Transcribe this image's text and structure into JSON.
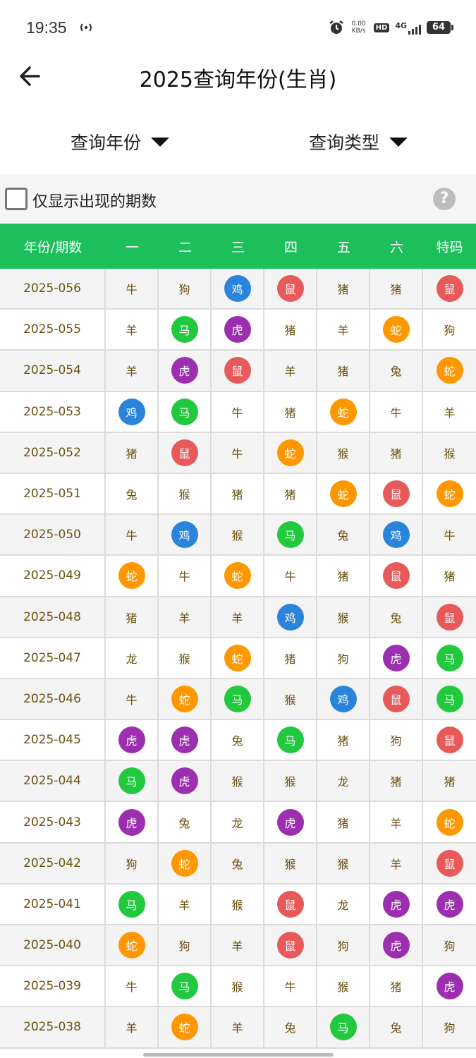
{
  "status_bar": {
    "time": "19:35",
    "net_speed": "0.00",
    "net_speed_unit": "KB/s",
    "hd_label": "HD",
    "network": "4G",
    "battery": "64"
  },
  "header": {
    "title": "2025查询年份(生肖)"
  },
  "filters": {
    "year_label": "查询年份",
    "type_label": "查询类型"
  },
  "options": {
    "show_only_label": "仅显示出现的期数",
    "help_glyph": "?"
  },
  "colors": {
    "header_bg": "#1dbf5c",
    "red": "#e85a5a",
    "blue": "#2b84dc",
    "green": "#22c93e",
    "purple": "#9c2fb0",
    "orange": "#ff9800"
  },
  "table": {
    "columns": [
      "年份/期数",
      "一",
      "二",
      "三",
      "四",
      "五",
      "六",
      "特码"
    ],
    "rows": [
      {
        "period": "2025-056",
        "cells": [
          {
            "t": "牛",
            "c": ""
          },
          {
            "t": "狗",
            "c": ""
          },
          {
            "t": "鸡",
            "c": "blue"
          },
          {
            "t": "鼠",
            "c": "red"
          },
          {
            "t": "猪",
            "c": ""
          },
          {
            "t": "猪",
            "c": ""
          },
          {
            "t": "鼠",
            "c": "red"
          }
        ]
      },
      {
        "period": "2025-055",
        "cells": [
          {
            "t": "羊",
            "c": ""
          },
          {
            "t": "马",
            "c": "green"
          },
          {
            "t": "虎",
            "c": "purple"
          },
          {
            "t": "猪",
            "c": ""
          },
          {
            "t": "羊",
            "c": ""
          },
          {
            "t": "蛇",
            "c": "orange"
          },
          {
            "t": "狗",
            "c": ""
          }
        ]
      },
      {
        "period": "2025-054",
        "cells": [
          {
            "t": "羊",
            "c": ""
          },
          {
            "t": "虎",
            "c": "purple"
          },
          {
            "t": "鼠",
            "c": "red"
          },
          {
            "t": "羊",
            "c": ""
          },
          {
            "t": "猪",
            "c": ""
          },
          {
            "t": "兔",
            "c": ""
          },
          {
            "t": "蛇",
            "c": "orange"
          }
        ]
      },
      {
        "period": "2025-053",
        "cells": [
          {
            "t": "鸡",
            "c": "blue"
          },
          {
            "t": "马",
            "c": "green"
          },
          {
            "t": "牛",
            "c": ""
          },
          {
            "t": "猪",
            "c": ""
          },
          {
            "t": "蛇",
            "c": "orange"
          },
          {
            "t": "牛",
            "c": ""
          },
          {
            "t": "羊",
            "c": ""
          }
        ]
      },
      {
        "period": "2025-052",
        "cells": [
          {
            "t": "猪",
            "c": ""
          },
          {
            "t": "鼠",
            "c": "red"
          },
          {
            "t": "牛",
            "c": ""
          },
          {
            "t": "蛇",
            "c": "orange"
          },
          {
            "t": "猴",
            "c": ""
          },
          {
            "t": "猪",
            "c": ""
          },
          {
            "t": "猴",
            "c": ""
          }
        ]
      },
      {
        "period": "2025-051",
        "cells": [
          {
            "t": "兔",
            "c": ""
          },
          {
            "t": "猴",
            "c": ""
          },
          {
            "t": "猪",
            "c": ""
          },
          {
            "t": "猪",
            "c": ""
          },
          {
            "t": "蛇",
            "c": "orange"
          },
          {
            "t": "鼠",
            "c": "red"
          },
          {
            "t": "蛇",
            "c": "orange"
          }
        ]
      },
      {
        "period": "2025-050",
        "cells": [
          {
            "t": "牛",
            "c": ""
          },
          {
            "t": "鸡",
            "c": "blue"
          },
          {
            "t": "猴",
            "c": ""
          },
          {
            "t": "马",
            "c": "green"
          },
          {
            "t": "兔",
            "c": ""
          },
          {
            "t": "鸡",
            "c": "blue"
          },
          {
            "t": "牛",
            "c": ""
          }
        ]
      },
      {
        "period": "2025-049",
        "cells": [
          {
            "t": "蛇",
            "c": "orange"
          },
          {
            "t": "牛",
            "c": ""
          },
          {
            "t": "蛇",
            "c": "orange"
          },
          {
            "t": "牛",
            "c": ""
          },
          {
            "t": "猪",
            "c": ""
          },
          {
            "t": "鼠",
            "c": "red"
          },
          {
            "t": "猪",
            "c": ""
          }
        ]
      },
      {
        "period": "2025-048",
        "cells": [
          {
            "t": "猪",
            "c": ""
          },
          {
            "t": "羊",
            "c": ""
          },
          {
            "t": "羊",
            "c": ""
          },
          {
            "t": "鸡",
            "c": "blue"
          },
          {
            "t": "猴",
            "c": ""
          },
          {
            "t": "兔",
            "c": ""
          },
          {
            "t": "鼠",
            "c": "red"
          }
        ]
      },
      {
        "period": "2025-047",
        "cells": [
          {
            "t": "龙",
            "c": ""
          },
          {
            "t": "猴",
            "c": ""
          },
          {
            "t": "蛇",
            "c": "orange"
          },
          {
            "t": "猪",
            "c": ""
          },
          {
            "t": "狗",
            "c": ""
          },
          {
            "t": "虎",
            "c": "purple"
          },
          {
            "t": "马",
            "c": "green"
          }
        ]
      },
      {
        "period": "2025-046",
        "cells": [
          {
            "t": "牛",
            "c": ""
          },
          {
            "t": "蛇",
            "c": "orange"
          },
          {
            "t": "马",
            "c": "green"
          },
          {
            "t": "猴",
            "c": ""
          },
          {
            "t": "鸡",
            "c": "blue"
          },
          {
            "t": "鼠",
            "c": "red"
          },
          {
            "t": "马",
            "c": "green"
          }
        ]
      },
      {
        "period": "2025-045",
        "cells": [
          {
            "t": "虎",
            "c": "purple"
          },
          {
            "t": "虎",
            "c": "purple"
          },
          {
            "t": "兔",
            "c": ""
          },
          {
            "t": "马",
            "c": "green"
          },
          {
            "t": "猪",
            "c": ""
          },
          {
            "t": "狗",
            "c": ""
          },
          {
            "t": "鼠",
            "c": "red"
          }
        ]
      },
      {
        "period": "2025-044",
        "cells": [
          {
            "t": "马",
            "c": "green"
          },
          {
            "t": "虎",
            "c": "purple"
          },
          {
            "t": "猴",
            "c": ""
          },
          {
            "t": "猴",
            "c": ""
          },
          {
            "t": "龙",
            "c": ""
          },
          {
            "t": "猪",
            "c": ""
          },
          {
            "t": "猪",
            "c": ""
          }
        ]
      },
      {
        "period": "2025-043",
        "cells": [
          {
            "t": "虎",
            "c": "purple"
          },
          {
            "t": "兔",
            "c": ""
          },
          {
            "t": "龙",
            "c": ""
          },
          {
            "t": "虎",
            "c": "purple"
          },
          {
            "t": "猪",
            "c": ""
          },
          {
            "t": "羊",
            "c": ""
          },
          {
            "t": "蛇",
            "c": "orange"
          }
        ]
      },
      {
        "period": "2025-042",
        "cells": [
          {
            "t": "狗",
            "c": ""
          },
          {
            "t": "蛇",
            "c": "orange"
          },
          {
            "t": "兔",
            "c": ""
          },
          {
            "t": "猴",
            "c": ""
          },
          {
            "t": "猴",
            "c": ""
          },
          {
            "t": "羊",
            "c": ""
          },
          {
            "t": "鼠",
            "c": "red"
          }
        ]
      },
      {
        "period": "2025-041",
        "cells": [
          {
            "t": "马",
            "c": "green"
          },
          {
            "t": "羊",
            "c": ""
          },
          {
            "t": "猴",
            "c": ""
          },
          {
            "t": "鼠",
            "c": "red"
          },
          {
            "t": "龙",
            "c": ""
          },
          {
            "t": "虎",
            "c": "purple"
          },
          {
            "t": "虎",
            "c": "purple"
          }
        ]
      },
      {
        "period": "2025-040",
        "cells": [
          {
            "t": "蛇",
            "c": "orange"
          },
          {
            "t": "狗",
            "c": ""
          },
          {
            "t": "羊",
            "c": ""
          },
          {
            "t": "鼠",
            "c": "red"
          },
          {
            "t": "狗",
            "c": ""
          },
          {
            "t": "虎",
            "c": "purple"
          },
          {
            "t": "狗",
            "c": ""
          }
        ]
      },
      {
        "period": "2025-039",
        "cells": [
          {
            "t": "牛",
            "c": ""
          },
          {
            "t": "马",
            "c": "green"
          },
          {
            "t": "猴",
            "c": ""
          },
          {
            "t": "牛",
            "c": ""
          },
          {
            "t": "猴",
            "c": ""
          },
          {
            "t": "猪",
            "c": ""
          },
          {
            "t": "虎",
            "c": "purple"
          }
        ]
      },
      {
        "period": "2025-038",
        "cells": [
          {
            "t": "羊",
            "c": ""
          },
          {
            "t": "蛇",
            "c": "orange"
          },
          {
            "t": "羊",
            "c": ""
          },
          {
            "t": "兔",
            "c": ""
          },
          {
            "t": "马",
            "c": "green"
          },
          {
            "t": "兔",
            "c": ""
          },
          {
            "t": "狗",
            "c": ""
          }
        ]
      }
    ]
  }
}
